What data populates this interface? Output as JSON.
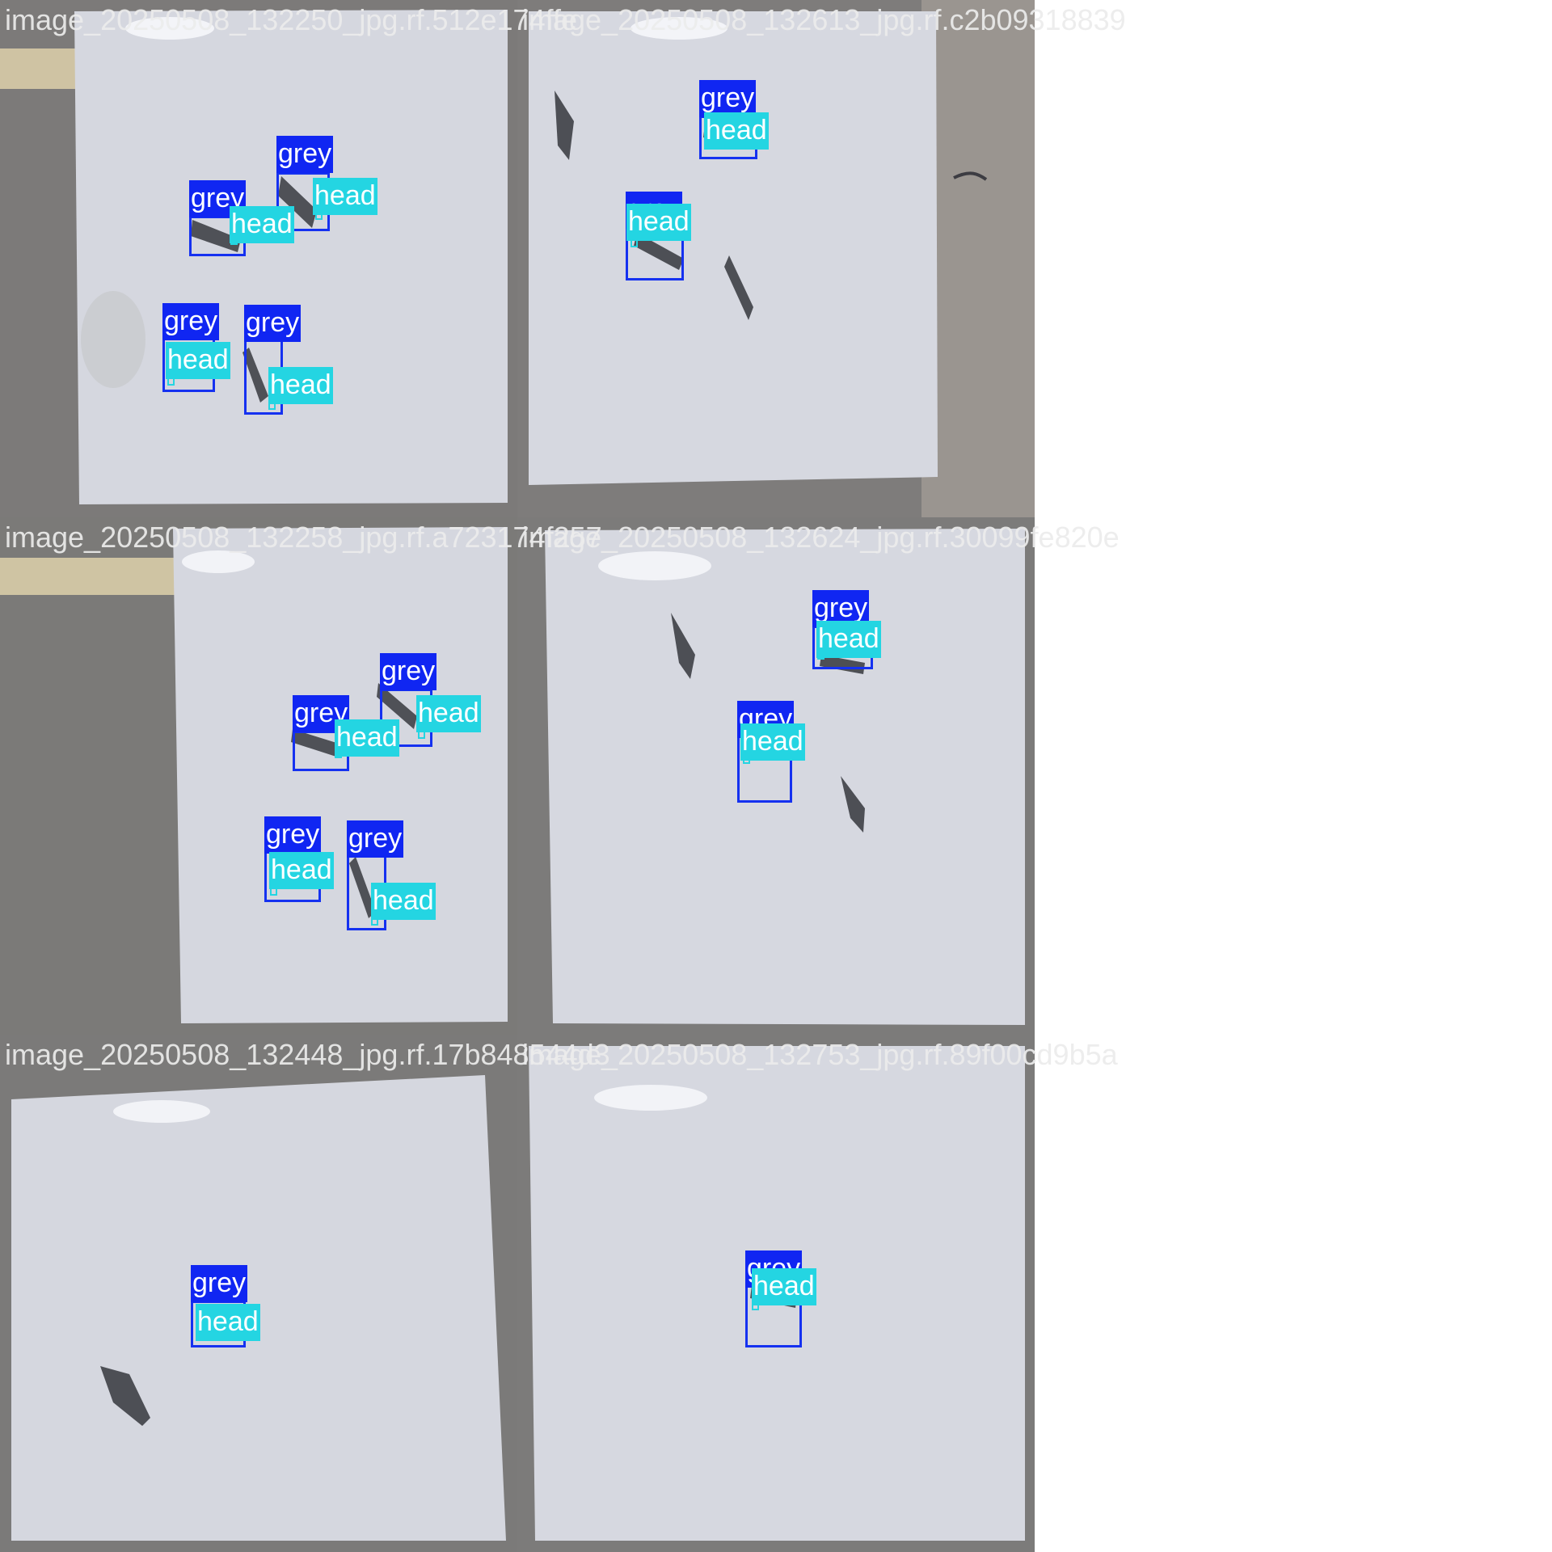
{
  "tiles": [
    {
      "filename": "image_20250508_132250_jpg.rf.512e174ffe",
      "detections": [
        {
          "label": "grey",
          "part": "head"
        },
        {
          "label": "grey",
          "part": "head"
        },
        {
          "label": "grey",
          "part": "head"
        },
        {
          "label": "grey",
          "part": "head"
        }
      ]
    },
    {
      "filename": "image_20250508_132613_jpg.rf.c2b09318839",
      "detections": [
        {
          "label": "grey",
          "part": "head"
        },
        {
          "label": "grey",
          "part": "head"
        }
      ]
    },
    {
      "filename": "image_20250508_132258_jpg.rf.a723174f257",
      "detections": [
        {
          "label": "grey",
          "part": "head"
        },
        {
          "label": "grey",
          "part": "head"
        },
        {
          "label": "grey",
          "part": "head"
        },
        {
          "label": "grey",
          "part": "head"
        }
      ]
    },
    {
      "filename": "image_20250508_132624_jpg.rf.30099fe820e",
      "detections": [
        {
          "label": "grey",
          "part": "head"
        },
        {
          "label": "grey",
          "part": "head"
        }
      ]
    },
    {
      "filename": "image_20250508_132448_jpg.rf.17b848544d3",
      "detections": [
        {
          "label": "grey",
          "part": "head"
        }
      ]
    },
    {
      "filename": "image_20250508_132753_jpg.rf.89f00cd9b5a",
      "detections": [
        {
          "label": "grey",
          "part": "head"
        }
      ]
    }
  ],
  "colors": {
    "grey_box": "#1531f0",
    "head_box": "#24d5e2",
    "board": "#d6d8e0",
    "floor": "#7b7b7d"
  }
}
